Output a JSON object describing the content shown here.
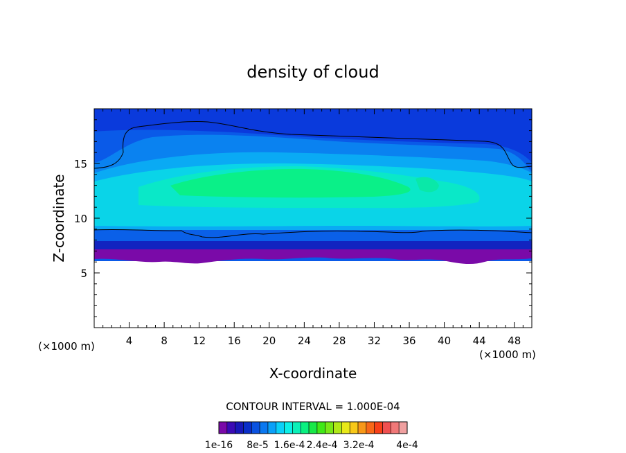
{
  "chart_data": {
    "type": "heatmap",
    "title": "density of cloud",
    "xlabel": "X-coordinate",
    "ylabel": "Z-coordinate",
    "x_unit_left": "(×1000 m)",
    "x_unit_right": "(×1000 m)",
    "xlim": [
      0,
      50
    ],
    "ylim": [
      0,
      20
    ],
    "x_ticks": [
      4,
      8,
      12,
      16,
      20,
      24,
      28,
      32,
      36,
      40,
      44,
      48
    ],
    "y_ticks": [
      5,
      10,
      15
    ],
    "contour_interval_label": "CONTOUR INTERVAL = 1.000E-04",
    "colorbar": {
      "labels": [
        "1e-16",
        "8e-5",
        "1.6e-4",
        "2.4e-4",
        "3.2e-4",
        "4e-4"
      ],
      "colors": [
        "#7a0aa8",
        "#3b0bb5",
        "#1818b8",
        "#0a2ec8",
        "#0a52e0",
        "#0a78f0",
        "#0aa0f8",
        "#0ad0f8",
        "#0af0e8",
        "#0af0b8",
        "#0af080",
        "#18e848",
        "#40e818",
        "#78e818",
        "#b0e818",
        "#e8e818",
        "#f8c818",
        "#f89818",
        "#f86818",
        "#f84018",
        "#f05050",
        "#f07878",
        "#f0a0a0"
      ],
      "shown_by": "position"
    },
    "grid": false,
    "legend": "bottom"
  }
}
